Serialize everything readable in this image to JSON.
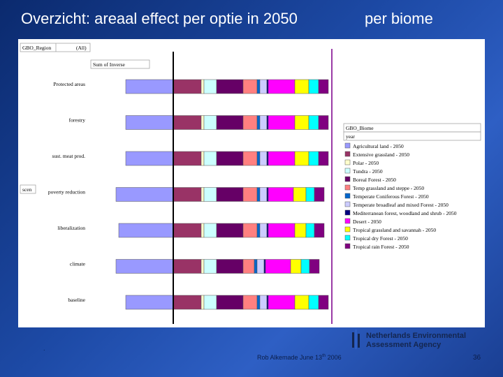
{
  "slide": {
    "title_left": "Overzicht: areaal effect per optie in 2050",
    "title_right": "per biome",
    "credit_main": "Rob Alkemade June 13",
    "credit_sup": "th",
    "credit_year": " 2006",
    "page_number": "36",
    "dot": ".",
    "logo_line1": "Netherlands Environmental",
    "logo_line2": "Assessment Agency",
    "colors": {
      "background": "#1d4aa6",
      "text": "#ffffff",
      "marker_line": "#9a3aa6"
    }
  },
  "chart_data": {
    "type": "bar",
    "stacked": true,
    "orientation": "horizontal",
    "filter_label": "GBO_Region",
    "filter_value": "(All)",
    "data_label": "Sum of Inverse",
    "row_field_label": "scen",
    "legend_title": "GBO_Biome",
    "legend_subtitle": "year",
    "legend_position": "right",
    "grid": false,
    "categories": [
      "Protected areas",
      "forestry",
      "sust. meat prod.",
      "poverty reduction",
      "liberalization",
      "climate",
      "baseline"
    ],
    "series": [
      {
        "name": "Agricultural land - 2050",
        "color": "#9999ff",
        "values": [
          68,
          68,
          68,
          82,
          78,
          82,
          68
        ]
      },
      {
        "name": "Extensive grassland - 2050",
        "color": "#993366",
        "values": [
          40,
          40,
          40,
          40,
          40,
          40,
          40
        ]
      },
      {
        "name": "Polar - 2050",
        "color": "#ffffcc",
        "values": [
          4,
          4,
          4,
          4,
          4,
          4,
          4
        ]
      },
      {
        "name": "Tundra - 2050",
        "color": "#ccffff",
        "values": [
          18,
          18,
          18,
          18,
          18,
          18,
          18
        ]
      },
      {
        "name": "Boreal Forest - 2050",
        "color": "#660066",
        "values": [
          38,
          38,
          38,
          38,
          38,
          38,
          38
        ]
      },
      {
        "name": "Temp grassland and steppe - 2050",
        "color": "#ff8080",
        "values": [
          20,
          20,
          20,
          20,
          20,
          16,
          20
        ]
      },
      {
        "name": "Temperate Coniferous Forest - 2050",
        "color": "#0066cc",
        "values": [
          4,
          4,
          4,
          4,
          4,
          4,
          4
        ]
      },
      {
        "name": "Temperate broadleaf and mixed Forest - 2050",
        "color": "#ccccff",
        "values": [
          10,
          10,
          10,
          10,
          10,
          10,
          10
        ]
      },
      {
        "name": "Mediterranean forest, woodland and shrub - 2050",
        "color": "#000080",
        "values": [
          2,
          2,
          2,
          2,
          2,
          2,
          2
        ]
      },
      {
        "name": "Desert - 2050",
        "color": "#ff00ff",
        "values": [
          38,
          38,
          38,
          36,
          38,
          36,
          38
        ]
      },
      {
        "name": "Tropical grassland and savannah - 2050",
        "color": "#ffff00",
        "values": [
          20,
          20,
          20,
          18,
          16,
          15,
          20
        ]
      },
      {
        "name": "Tropical dry Forest - 2050",
        "color": "#00ffff",
        "values": [
          14,
          14,
          14,
          12,
          12,
          12,
          14
        ]
      },
      {
        "name": "Tropical rain Forest - 2050",
        "color": "#800080",
        "values": [
          14,
          14,
          14,
          14,
          14,
          14,
          14
        ]
      }
    ]
  }
}
